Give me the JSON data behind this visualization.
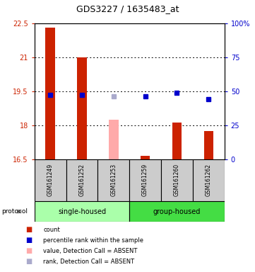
{
  "title": "GDS3227 / 1635483_at",
  "samples": [
    "GSM161249",
    "GSM161252",
    "GSM161253",
    "GSM161259",
    "GSM161260",
    "GSM161262"
  ],
  "ylim_left": [
    16.5,
    22.5
  ],
  "ylim_right": [
    0,
    100
  ],
  "yticks_left": [
    16.5,
    18.0,
    19.5,
    21.0,
    22.5
  ],
  "yticks_right": [
    0,
    25,
    50,
    75,
    100
  ],
  "ytick_labels_left": [
    "16.5",
    "18",
    "19.5",
    "21",
    "22.5"
  ],
  "ytick_labels_right": [
    "0",
    "25",
    "50",
    "75",
    "100%"
  ],
  "bar_values": {
    "GSM161249": 22.3,
    "GSM161252": 21.0,
    "GSM161253": null,
    "GSM161259": 16.63,
    "GSM161260": 18.1,
    "GSM161262": 17.75
  },
  "absent_bar_values": {
    "GSM161253": 18.25
  },
  "percentile_values": {
    "GSM161249": 47,
    "GSM161252": 47,
    "GSM161259": 46,
    "GSM161260": 49,
    "GSM161262": 44
  },
  "absent_percentile_values": {
    "GSM161253": 46
  },
  "bar_color": "#cc2200",
  "absent_bar_color": "#ffaaaa",
  "percentile_color": "#0000cc",
  "absent_percentile_color": "#aaaacc",
  "group_colors": {
    "single-housed": "#aaffaa",
    "group-housed": "#44dd44"
  },
  "legend_items": [
    {
      "label": "count",
      "color": "#cc2200"
    },
    {
      "label": "percentile rank within the sample",
      "color": "#0000cc"
    },
    {
      "label": "value, Detection Call = ABSENT",
      "color": "#ffaaaa"
    },
    {
      "label": "rank, Detection Call = ABSENT",
      "color": "#aaaacc"
    }
  ]
}
